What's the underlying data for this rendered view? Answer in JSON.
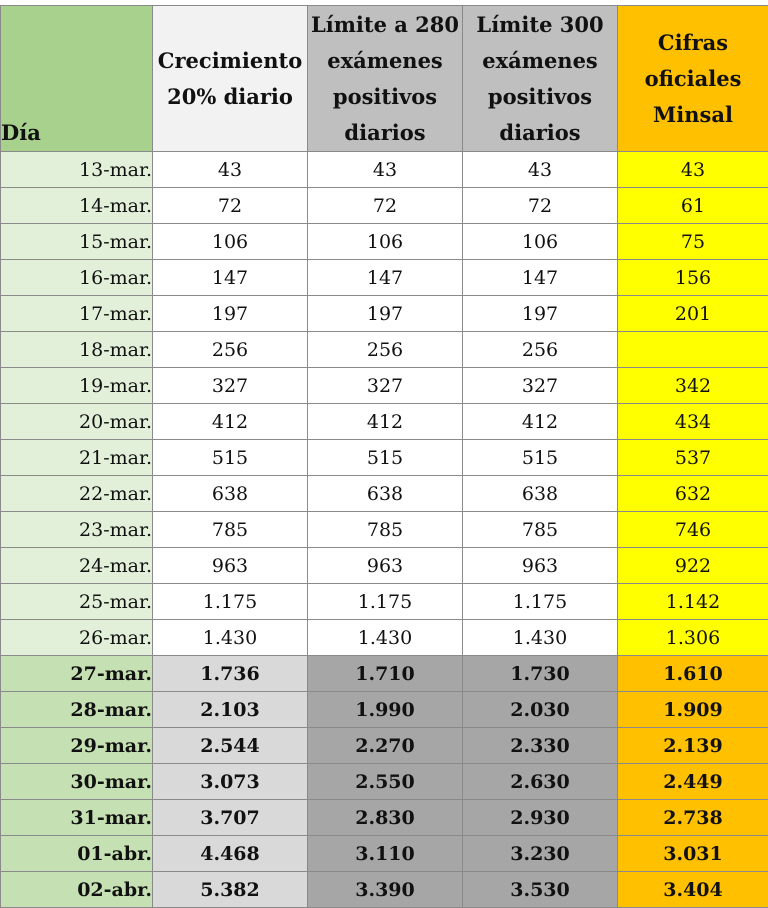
{
  "headers": {
    "day": "Día",
    "growth": [
      "Crecimiento",
      "20% diario"
    ],
    "limit280": [
      "Límite a 280",
      "exámenes",
      "positivos",
      "diarios"
    ],
    "limit300": [
      "Límite 300",
      "exámenes",
      "positivos",
      "diarios"
    ],
    "minsal": [
      "Cifras",
      "oficiales",
      "Minsal"
    ]
  },
  "rows": [
    {
      "day": "13-mar.",
      "growth": "43",
      "limit280": "43",
      "limit300": "43",
      "minsal": "43",
      "bold": false
    },
    {
      "day": "14-mar.",
      "growth": "72",
      "limit280": "72",
      "limit300": "72",
      "minsal": "61",
      "bold": false
    },
    {
      "day": "15-mar.",
      "growth": "106",
      "limit280": "106",
      "limit300": "106",
      "minsal": "75",
      "bold": false
    },
    {
      "day": "16-mar.",
      "growth": "147",
      "limit280": "147",
      "limit300": "147",
      "minsal": "156",
      "bold": false
    },
    {
      "day": "17-mar.",
      "growth": "197",
      "limit280": "197",
      "limit300": "197",
      "minsal": "201",
      "bold": false
    },
    {
      "day": "18-mar.",
      "growth": "256",
      "limit280": "256",
      "limit300": "256",
      "minsal": "",
      "bold": false
    },
    {
      "day": "19-mar.",
      "growth": "327",
      "limit280": "327",
      "limit300": "327",
      "minsal": "342",
      "bold": false
    },
    {
      "day": "20-mar.",
      "growth": "412",
      "limit280": "412",
      "limit300": "412",
      "minsal": "434",
      "bold": false
    },
    {
      "day": "21-mar.",
      "growth": "515",
      "limit280": "515",
      "limit300": "515",
      "minsal": "537",
      "bold": false
    },
    {
      "day": "22-mar.",
      "growth": "638",
      "limit280": "638",
      "limit300": "638",
      "minsal": "632",
      "bold": false
    },
    {
      "day": "23-mar.",
      "growth": "785",
      "limit280": "785",
      "limit300": "785",
      "minsal": "746",
      "bold": false
    },
    {
      "day": "24-mar.",
      "growth": "963",
      "limit280": "963",
      "limit300": "963",
      "minsal": "922",
      "bold": false
    },
    {
      "day": "25-mar.",
      "growth": "1.175",
      "limit280": "1.175",
      "limit300": "1.175",
      "minsal": "1.142",
      "bold": false
    },
    {
      "day": "26-mar.",
      "growth": "1.430",
      "limit280": "1.430",
      "limit300": "1.430",
      "minsal": "1.306",
      "bold": false
    },
    {
      "day": "27-mar.",
      "growth": "1.736",
      "limit280": "1.710",
      "limit300": "1.730",
      "minsal": "1.610",
      "bold": true
    },
    {
      "day": "28-mar.",
      "growth": "2.103",
      "limit280": "1.990",
      "limit300": "2.030",
      "minsal": "1.909",
      "bold": true
    },
    {
      "day": "29-mar.",
      "growth": "2.544",
      "limit280": "2.270",
      "limit300": "2.330",
      "minsal": "2.139",
      "bold": true
    },
    {
      "day": "30-mar.",
      "growth": "3.073",
      "limit280": "2.550",
      "limit300": "2.630",
      "minsal": "2.449",
      "bold": true
    },
    {
      "day": "31-mar.",
      "growth": "3.707",
      "limit280": "2.830",
      "limit300": "2.930",
      "minsal": "2.738",
      "bold": true
    },
    {
      "day": "01-abr.",
      "growth": "4.468",
      "limit280": "3.110",
      "limit300": "3.230",
      "minsal": "3.031",
      "bold": true
    },
    {
      "day": "02-abr.",
      "growth": "5.382",
      "limit280": "3.390",
      "limit300": "3.530",
      "minsal": "3.404",
      "bold": true
    }
  ],
  "colors": {
    "day_header": "#a9d18e",
    "day_light": "#e2efd9",
    "day_bold": "#c5e0b3",
    "growth_header": "#f2f2f2",
    "growth_bold": "#d9d9d9",
    "limit_header": "#bfbfbf",
    "limit_bold": "#a6a6a6",
    "minsal_light": "#ffff00",
    "minsal_bold": "#ffc000"
  }
}
